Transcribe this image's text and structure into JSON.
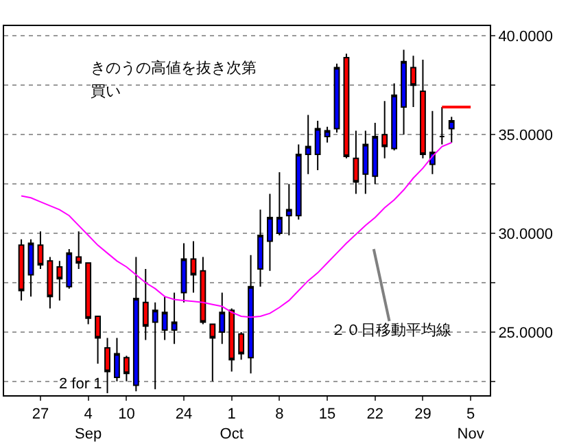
{
  "chart_data": {
    "type": "candlestick",
    "annotations": [
      "きのうの高値を抜き次第",
      "買い",
      "２０日移動平均線",
      "2 for 1"
    ],
    "categories": [
      null,
      null,
      "27",
      null,
      null,
      null,
      null,
      "4\nSep",
      null,
      null,
      null,
      "10",
      null,
      null,
      null,
      null,
      null,
      "24",
      null,
      null,
      null,
      null,
      "1\nOct",
      null,
      null,
      null,
      null,
      "8",
      null,
      null,
      null,
      null,
      "15",
      null,
      null,
      null,
      null,
      "22",
      null,
      null,
      null,
      null,
      "29",
      null,
      null,
      null,
      null,
      "5\nNov"
    ],
    "ohlc": [
      [
        29.4,
        29.7,
        26.6,
        27.1
      ],
      [
        27.9,
        29.7,
        26.8,
        29.5
      ],
      [
        29.4,
        30.1,
        28.2,
        28.4
      ],
      [
        28.6,
        28.8,
        26.2,
        26.8
      ],
      [
        28.3,
        28.6,
        26.6,
        27.7
      ],
      [
        27.3,
        29.2,
        27.2,
        29.0
      ],
      [
        28.8,
        30.1,
        28.2,
        28.5
      ],
      [
        28.5,
        28.5,
        25.4,
        25.7
      ],
      [
        25.8,
        25.8,
        23.4,
        24.7
      ],
      [
        24.2,
        24.7,
        21.9,
        23.0
      ],
      [
        22.7,
        24.7,
        22.5,
        23.9
      ],
      [
        23.7,
        23.8,
        22.5,
        22.9
      ],
      [
        22.3,
        28.8,
        22.0,
        26.7
      ],
      [
        26.5,
        28.2,
        24.6,
        25.3
      ],
      [
        25.5,
        26.5,
        22.1,
        26.1
      ],
      [
        25.1,
        26.8,
        24.6,
        26.0
      ],
      [
        25.1,
        27.0,
        24.4,
        25.5
      ],
      [
        27.0,
        29.5,
        26.5,
        28.7
      ],
      [
        28.7,
        29.6,
        27.0,
        27.9
      ],
      [
        28.1,
        28.8,
        25.4,
        25.5
      ],
      [
        25.4,
        25.4,
        22.5,
        24.7
      ],
      [
        25.0,
        27.0,
        24.4,
        26.0
      ],
      [
        26.1,
        26.2,
        23.0,
        23.6
      ],
      [
        24.9,
        25.0,
        23.6,
        23.9
      ],
      [
        23.7,
        28.9,
        22.9,
        27.3
      ],
      [
        28.2,
        31.2,
        27.3,
        29.9
      ],
      [
        29.6,
        32.0,
        28.1,
        30.8
      ],
      [
        30.0,
        33.1,
        29.9,
        30.8
      ],
      [
        30.9,
        32.5,
        29.9,
        31.2
      ],
      [
        30.9,
        34.5,
        30.7,
        34.0
      ],
      [
        34.0,
        36.0,
        33.0,
        34.4
      ],
      [
        34.0,
        35.7,
        33.2,
        35.3
      ],
      [
        34.9,
        35.4,
        34.6,
        35.2
      ],
      [
        35.3,
        38.6,
        35.1,
        38.4
      ],
      [
        38.9,
        39.1,
        33.8,
        33.9
      ],
      [
        33.8,
        35.2,
        32.0,
        32.6
      ],
      [
        33.0,
        35.2,
        32.0,
        34.5
      ],
      [
        32.9,
        35.6,
        32.5,
        34.9
      ],
      [
        35.0,
        36.7,
        33.8,
        34.4
      ],
      [
        34.3,
        37.6,
        34.2,
        37.0
      ],
      [
        36.4,
        39.3,
        35.0,
        38.7
      ],
      [
        38.4,
        39.0,
        36.4,
        37.5
      ],
      [
        37.2,
        38.8,
        33.8,
        34.0
      ],
      [
        33.5,
        36.2,
        33.0,
        34.1
      ],
      [
        34.9,
        36.4,
        34.5,
        34.9
      ],
      [
        35.3,
        35.9,
        34.6,
        35.7
      ],
      null,
      null
    ],
    "series": [
      {
        "type": "line",
        "color": "#ff00ff",
        "values": [
          31.9,
          31.8,
          31.6,
          31.4,
          31.2,
          30.9,
          30.4,
          29.9,
          29.4,
          29.0,
          28.6,
          28.3,
          27.9,
          27.5,
          27.2,
          26.8,
          26.65,
          26.6,
          26.55,
          26.5,
          26.4,
          26.3,
          26.0,
          25.8,
          25.75,
          25.8,
          25.95,
          26.25,
          26.6,
          27.1,
          27.6,
          28.0,
          28.5,
          29.0,
          29.5,
          29.95,
          30.4,
          30.8,
          31.3,
          31.7,
          32.2,
          32.8,
          33.3,
          33.9,
          34.4,
          34.6,
          null,
          null
        ]
      },
      {
        "type": "line",
        "color": "#ff0000",
        "values": [
          null,
          null,
          null,
          null,
          null,
          null,
          null,
          null,
          null,
          null,
          null,
          null,
          null,
          null,
          null,
          null,
          null,
          null,
          null,
          null,
          null,
          null,
          null,
          null,
          null,
          null,
          null,
          null,
          null,
          null,
          null,
          null,
          null,
          null,
          null,
          null,
          null,
          null,
          null,
          null,
          null,
          null,
          null,
          null,
          36.4,
          36.4,
          36.4,
          36.4
        ]
      }
    ],
    "ylim": [
      21.8,
      40.5
    ],
    "yticks": [
      {
        "value": 22.5,
        "label": null
      },
      {
        "value": 25,
        "label": "25.0000"
      },
      {
        "value": 27.5,
        "label": null
      },
      {
        "value": 30,
        "label": "30.0000"
      },
      {
        "value": 32.5,
        "label": null
      },
      {
        "value": 35,
        "label": "35.0000"
      },
      {
        "value": 37.5,
        "label": null
      },
      {
        "value": 40,
        "label": "40.0000"
      }
    ],
    "grid": "y",
    "legend": false,
    "line_style": "solid",
    "marker": "none"
  }
}
